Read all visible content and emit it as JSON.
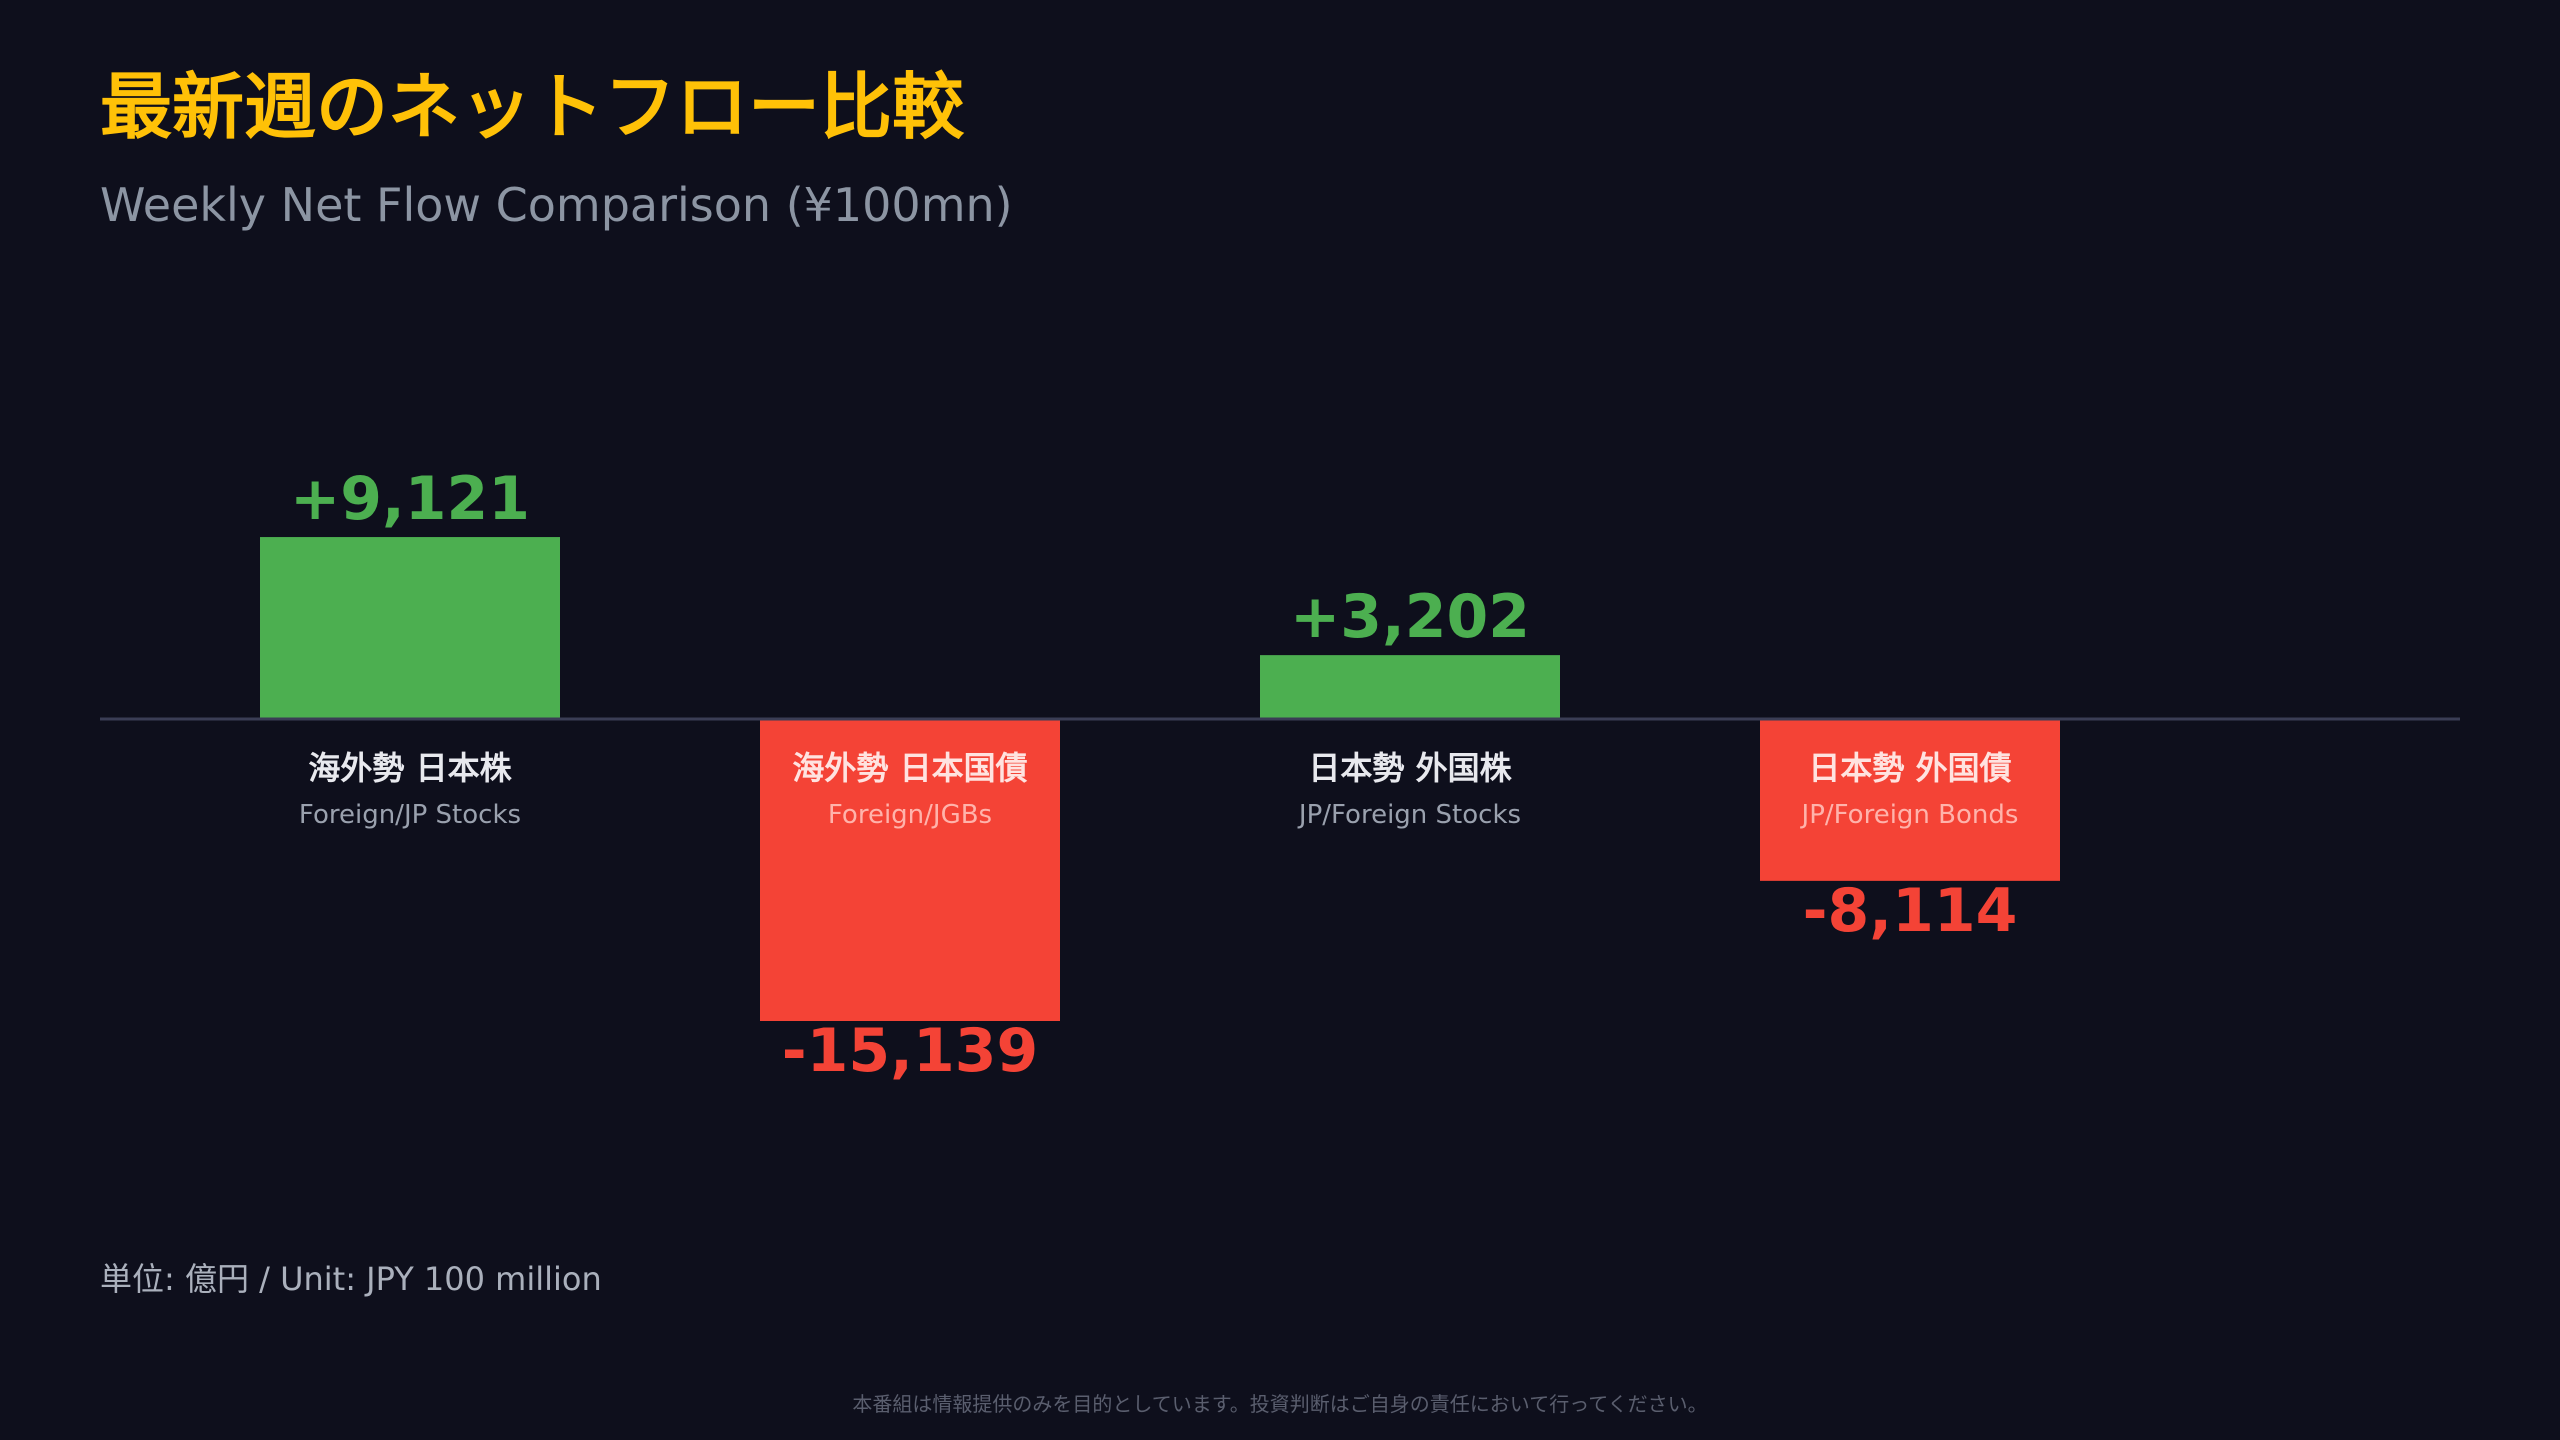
{
  "chart_data": {
    "type": "bar",
    "title": "最新週のネットフロー比較",
    "subtitle": "Weekly Net Flow Comparison (¥100mn)",
    "categories": [
      {
        "ja": "海外勢 日本株",
        "en": "Foreign/JP Stocks"
      },
      {
        "ja": "海外勢 日本国債",
        "en": "Foreign/JGBs"
      },
      {
        "ja": "日本勢 外国株",
        "en": "JP/Foreign Stocks"
      },
      {
        "ja": "日本勢 外国債",
        "en": "JP/Foreign Bonds"
      }
    ],
    "values": [
      9121,
      -15139,
      3202,
      -8114
    ],
    "value_labels": [
      "+9,121",
      "-15,139",
      "+3,202",
      "-8,114"
    ],
    "colors": {
      "positive": "#4caf50",
      "negative": "#f44336"
    },
    "grid": false,
    "legend": "none"
  },
  "unit_note": "単位: 億円 / Unit: JPY 100 million",
  "disclaimer": "本番組は情報提供のみを目的としています。投資判断はご自身の責任において行ってください。"
}
